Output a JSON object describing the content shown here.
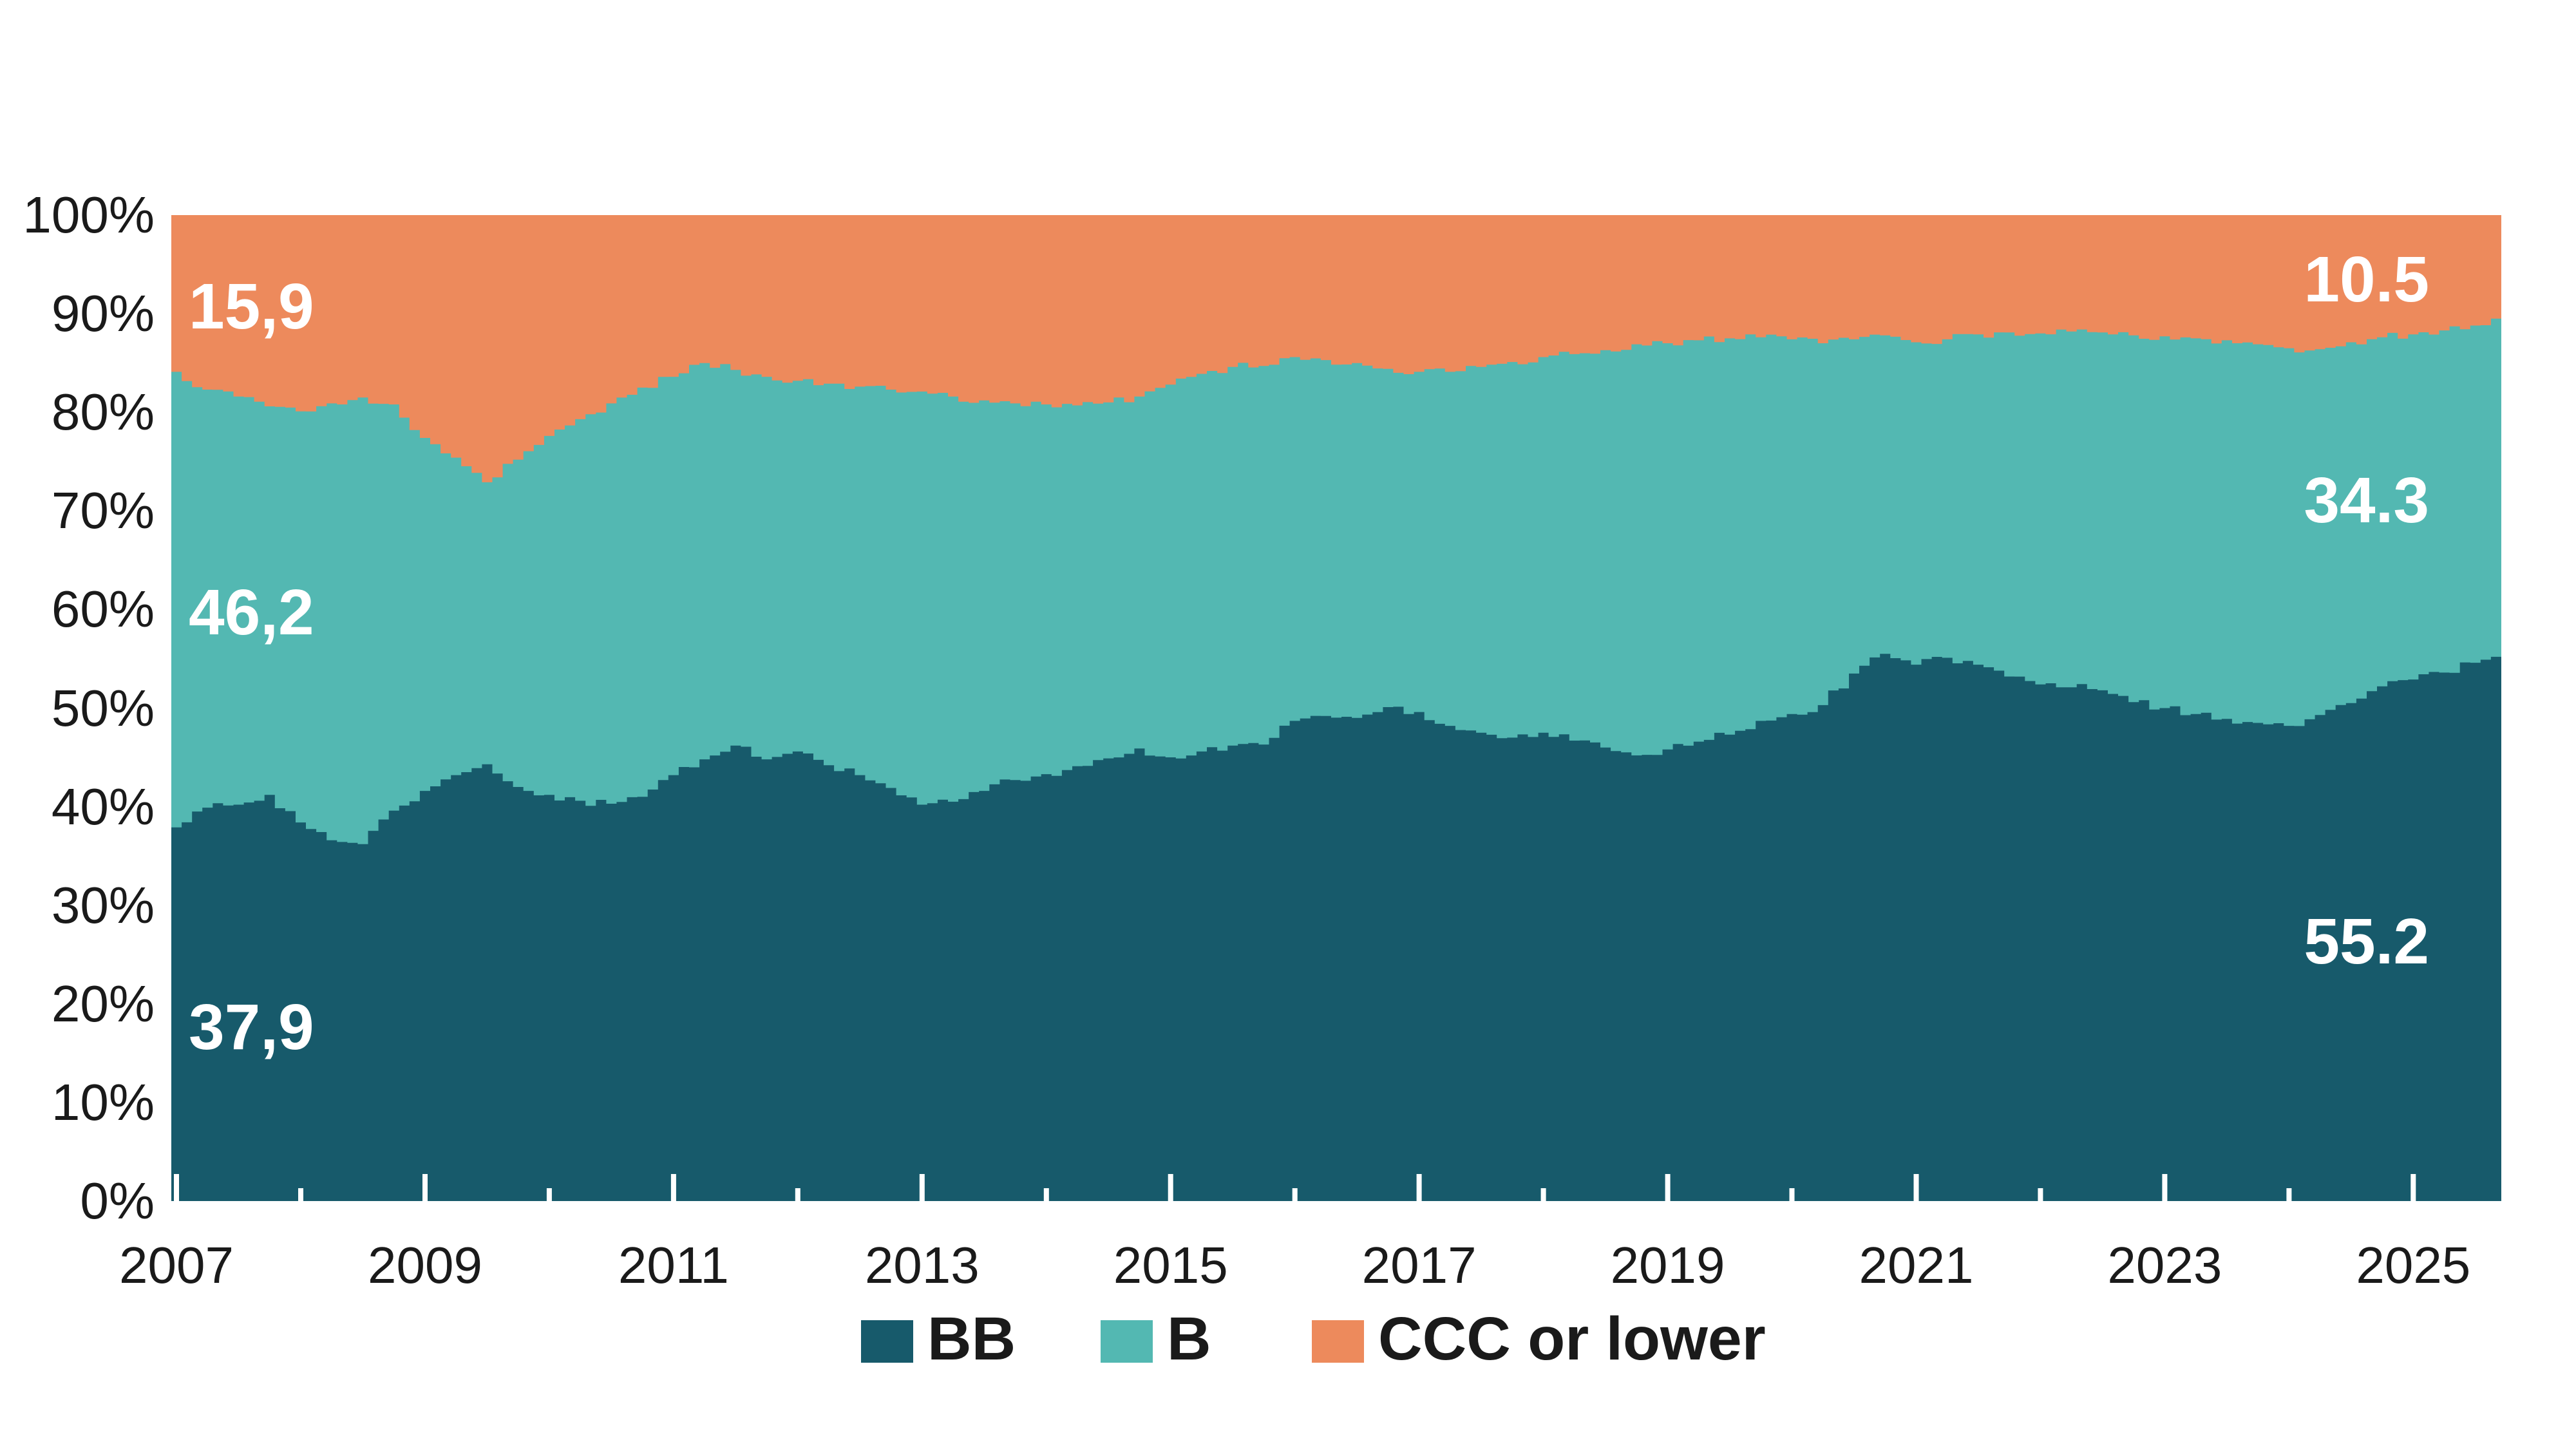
{
  "chart_data": {
    "type": "area",
    "stacked": true,
    "stacked_to_100_percent": true,
    "unit": "%",
    "x_axis": {
      "tick_years": [
        2007,
        2008,
        2009,
        2010,
        2011,
        2012,
        2013,
        2014,
        2015,
        2016,
        2017,
        2018,
        2019,
        2020,
        2021,
        2022,
        2023,
        2024,
        2025
      ],
      "labeled_years": [
        "2007",
        "2009",
        "2011",
        "2013",
        "2015",
        "2017",
        "2019",
        "2021",
        "2023",
        "2025"
      ]
    },
    "y_axis": {
      "tick_labels": [
        "0%",
        "10%",
        "20%",
        "30%",
        "40%",
        "50%",
        "60%",
        "70%",
        "80%",
        "90%",
        "100%"
      ],
      "ylim": [
        0,
        100
      ]
    },
    "grid": false,
    "legend_position": "bottom",
    "dates": [
      "2007-01",
      "2007-04",
      "2007-07",
      "2007-10",
      "2008-01",
      "2008-04",
      "2008-07",
      "2008-10",
      "2009-01",
      "2009-04",
      "2009-07",
      "2009-10",
      "2010-01",
      "2010-04",
      "2010-07",
      "2010-10",
      "2011-01",
      "2011-04",
      "2011-07",
      "2011-10",
      "2012-01",
      "2012-04",
      "2012-07",
      "2012-10",
      "2013-01",
      "2013-04",
      "2013-07",
      "2013-10",
      "2014-01",
      "2014-04",
      "2014-07",
      "2014-10",
      "2015-01",
      "2015-04",
      "2015-07",
      "2015-10",
      "2016-01",
      "2016-04",
      "2016-07",
      "2016-10",
      "2017-01",
      "2017-04",
      "2017-07",
      "2017-10",
      "2018-01",
      "2018-04",
      "2018-07",
      "2018-10",
      "2019-01",
      "2019-04",
      "2019-07",
      "2019-10",
      "2020-01",
      "2020-04",
      "2020-07",
      "2020-10",
      "2021-01",
      "2021-04",
      "2021-07",
      "2021-10",
      "2022-01",
      "2022-04",
      "2022-07",
      "2022-10",
      "2023-01",
      "2023-04",
      "2023-07",
      "2023-10",
      "2024-01",
      "2024-04",
      "2024-07",
      "2024-10",
      "2025-01",
      "2025-04",
      "2025-07",
      "2025-09"
    ],
    "series": [
      {
        "name": "BB",
        "color": "#175A6B",
        "values": [
          37.9,
          39.9,
          40.2,
          41.2,
          38.4,
          36.6,
          36.2,
          39.6,
          41.6,
          43.2,
          44.3,
          42.0,
          41.2,
          40.6,
          40.3,
          41.0,
          43.2,
          44.8,
          46.2,
          44.8,
          45.6,
          44.2,
          43.2,
          41.9,
          40.2,
          40.5,
          41.6,
          42.7,
          43.3,
          44.1,
          44.9,
          45.9,
          45.0,
          45.6,
          46.2,
          46.3,
          48.7,
          49.2,
          49.0,
          50.1,
          49.6,
          48.2,
          47.5,
          47.0,
          47.5,
          46.7,
          46.0,
          45.2,
          45.8,
          46.6,
          47.3,
          48.7,
          49.4,
          50.3,
          53.5,
          55.5,
          54.4,
          55.1,
          54.4,
          53.2,
          52.4,
          52.1,
          51.8,
          50.6,
          50.0,
          49.4,
          48.9,
          48.5,
          48.2,
          49.3,
          50.5,
          52.2,
          52.9,
          53.6,
          54.6,
          55.2
        ]
      },
      {
        "name": "B",
        "color": "#53B8B2",
        "values": [
          46.2,
          42.4,
          41.4,
          39.4,
          41.7,
          44.3,
          45.3,
          41.2,
          35.8,
          32.2,
          28.6,
          33.2,
          36.4,
          38.7,
          40.6,
          41.5,
          40.4,
          40.2,
          38.1,
          38.8,
          37.6,
          38.7,
          39.4,
          40.4,
          41.9,
          41.1,
          39.6,
          38.2,
          37.5,
          36.6,
          36.1,
          35.7,
          37.8,
          38.3,
          38.4,
          38.4,
          36.9,
          36.1,
          36.0,
          34.3,
          34.5,
          35.9,
          37.1,
          38.1,
          38.1,
          39.2,
          40.3,
          41.7,
          41.2,
          40.7,
          40.2,
          38.9,
          38.0,
          36.7,
          33.9,
          32.3,
          32.7,
          32.3,
          33.5,
          34.9,
          35.6,
          36.1,
          36.3,
          37.2,
          37.7,
          38.1,
          38.4,
          38.4,
          38.3,
          37.1,
          36.6,
          35.4,
          35.0,
          34.7,
          34.2,
          34.3
        ]
      },
      {
        "name": "CCC or lower",
        "color": "#ED8A5C",
        "values": [
          15.9,
          17.7,
          18.4,
          19.4,
          19.9,
          19.1,
          18.5,
          19.2,
          22.6,
          24.6,
          27.1,
          24.8,
          22.4,
          20.7,
          19.1,
          17.5,
          16.4,
          15.0,
          15.7,
          16.4,
          16.8,
          17.1,
          17.4,
          17.7,
          17.9,
          18.4,
          18.8,
          19.1,
          19.2,
          19.3,
          19.0,
          18.4,
          17.2,
          16.1,
          15.4,
          15.3,
          14.4,
          14.7,
          15.0,
          15.6,
          15.9,
          15.9,
          15.4,
          14.9,
          14.4,
          14.1,
          13.7,
          13.1,
          13.0,
          12.7,
          12.5,
          12.4,
          12.6,
          13.0,
          12.6,
          12.2,
          12.9,
          12.6,
          12.1,
          11.9,
          12.0,
          11.8,
          11.9,
          12.2,
          12.3,
          12.5,
          12.7,
          13.1,
          13.5,
          13.6,
          12.9,
          12.4,
          12.1,
          11.7,
          11.2,
          10.5
        ]
      }
    ],
    "annotations": {
      "start": {
        "ccc": "15,9",
        "b": "46,2",
        "bb": "37,9"
      },
      "end": {
        "ccc": "10.5",
        "b": "34.3",
        "bb": "55.2"
      }
    },
    "colors": {
      "axis_text": "#1a1a1a",
      "tick_marks": "#ffffff",
      "background": "#ffffff",
      "label_text": "#ffffff"
    }
  },
  "legend": {
    "items": [
      {
        "label": "BB"
      },
      {
        "label": "B"
      },
      {
        "label": "CCC or lower"
      }
    ]
  }
}
